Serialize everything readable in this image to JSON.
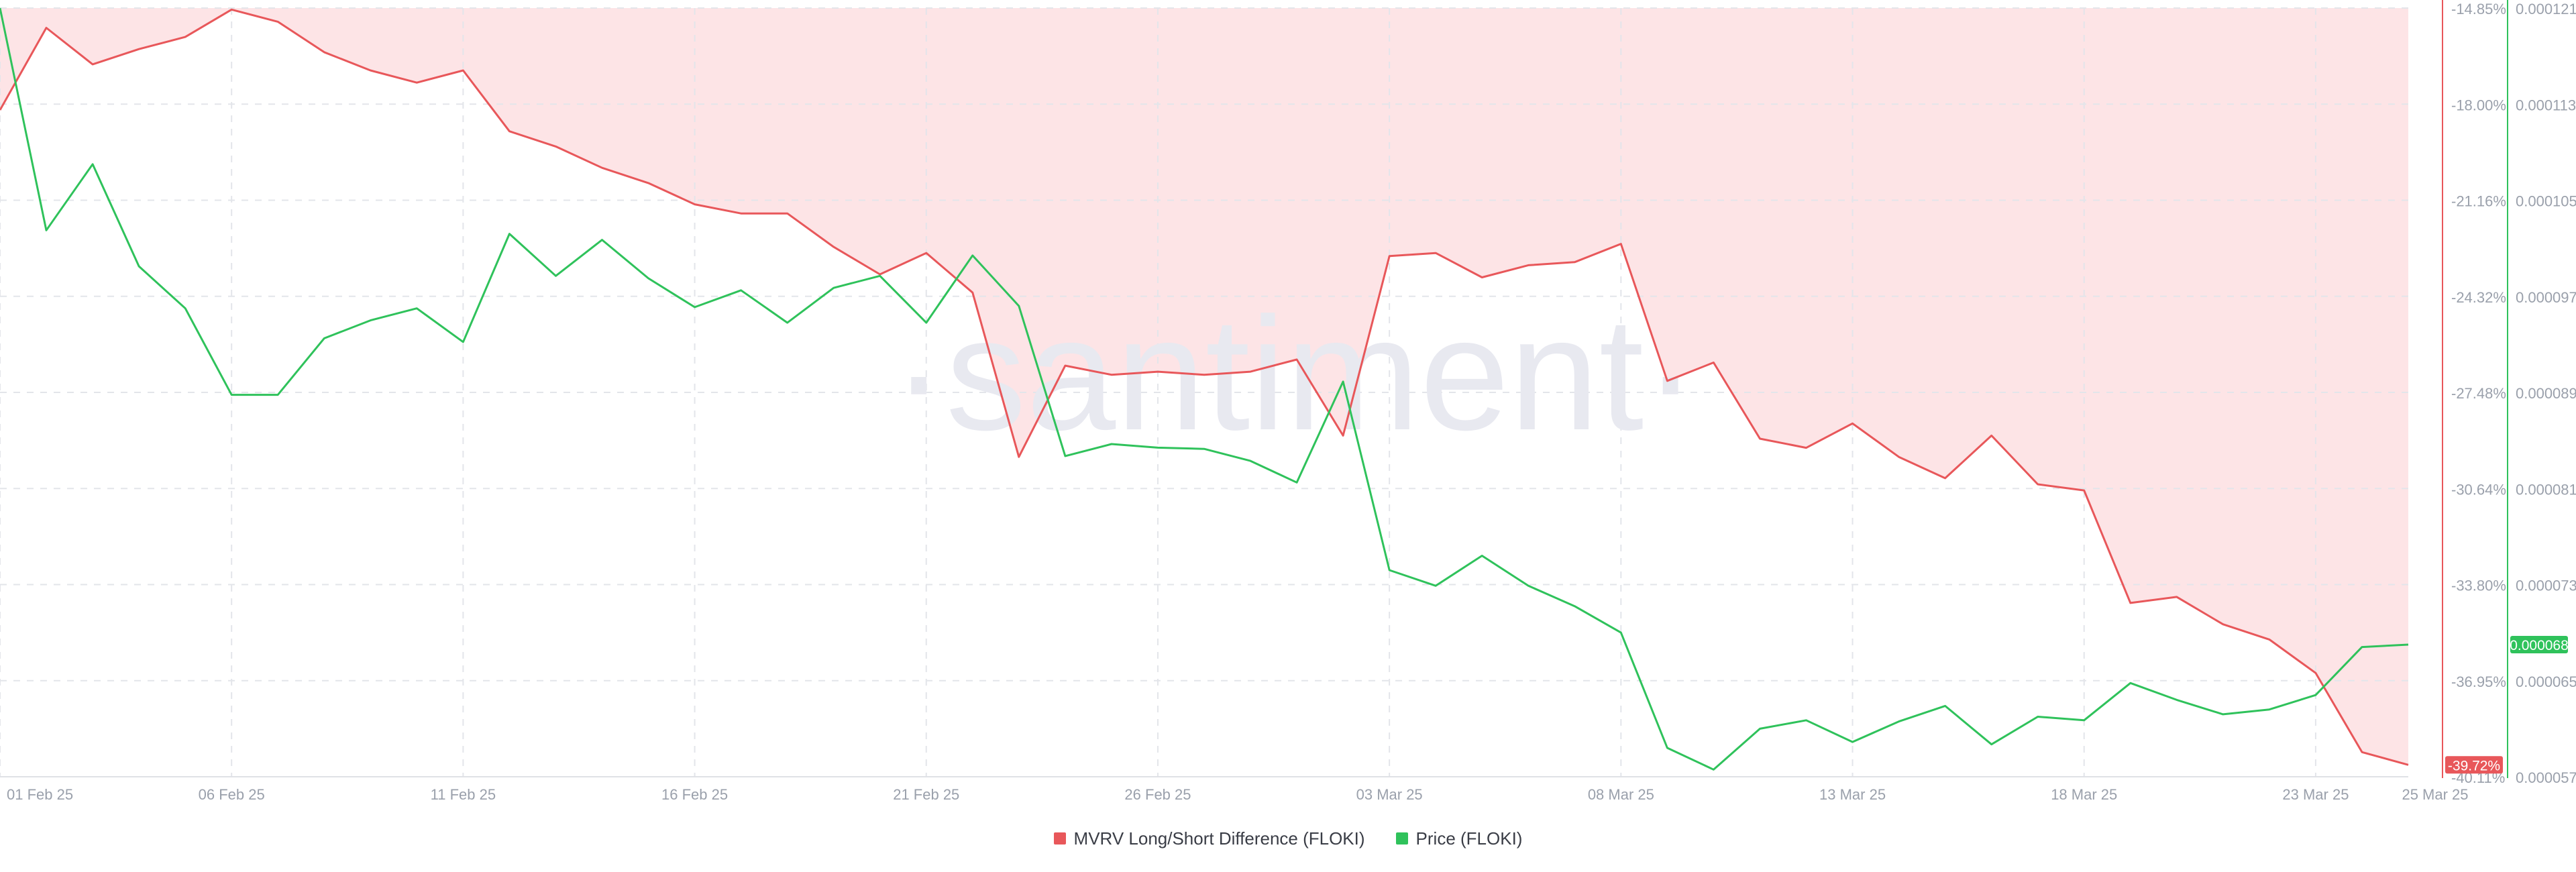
{
  "watermark": "·santiment·",
  "colors": {
    "mvrv": "#e8575a",
    "price": "#2fc25b",
    "negative_fill": "#fde4e6",
    "grid": "#e3e5ea",
    "axis_text": "#9aa0ab",
    "watermark": "#e8e9f0"
  },
  "chart_data": {
    "type": "line",
    "x": [
      "01 Feb 25",
      "02 Feb 25",
      "03 Feb 25",
      "04 Feb 25",
      "05 Feb 25",
      "06 Feb 25",
      "07 Feb 25",
      "08 Feb 25",
      "09 Feb 25",
      "10 Feb 25",
      "11 Feb 25",
      "12 Feb 25",
      "13 Feb 25",
      "14 Feb 25",
      "15 Feb 25",
      "16 Feb 25",
      "17 Feb 25",
      "18 Feb 25",
      "19 Feb 25",
      "20 Feb 25",
      "21 Feb 25",
      "22 Feb 25",
      "23 Feb 25",
      "24 Feb 25",
      "25 Feb 25",
      "26 Feb 25",
      "27 Feb 25",
      "28 Feb 25",
      "01 Mar 25",
      "02 Mar 25",
      "03 Mar 25",
      "04 Mar 25",
      "05 Mar 25",
      "06 Mar 25",
      "07 Mar 25",
      "08 Mar 25",
      "09 Mar 25",
      "10 Mar 25",
      "11 Mar 25",
      "12 Mar 25",
      "13 Mar 25",
      "14 Mar 25",
      "15 Mar 25",
      "16 Mar 25",
      "17 Mar 25",
      "18 Mar 25",
      "19 Mar 25",
      "20 Mar 25",
      "21 Mar 25",
      "22 Mar 25",
      "23 Mar 25",
      "24 Mar 25",
      "25 Mar 25"
    ],
    "x_ticks": [
      "01 Feb 25",
      "06 Feb 25",
      "11 Feb 25",
      "16 Feb 25",
      "21 Feb 25",
      "26 Feb 25",
      "03 Mar 25",
      "08 Mar 25",
      "13 Mar 25",
      "18 Mar 25",
      "23 Mar 25",
      "25 Mar 25"
    ],
    "series": [
      {
        "name": "MVRV Long/Short Difference (FLOKI)",
        "axis": "left",
        "unit": "%",
        "values": [
          -18.2,
          -15.5,
          -16.7,
          -16.2,
          -15.8,
          -14.9,
          -15.3,
          -16.3,
          -16.9,
          -17.3,
          -16.9,
          -18.9,
          -19.4,
          -20.1,
          -20.6,
          -21.3,
          -21.6,
          -21.6,
          -22.7,
          -23.6,
          -22.9,
          -24.2,
          -29.6,
          -26.6,
          -26.9,
          -26.8,
          -26.9,
          -26.8,
          -26.4,
          -28.9,
          -23.0,
          -22.9,
          -23.7,
          -23.3,
          -23.2,
          -22.6,
          -27.1,
          -26.5,
          -29.0,
          -29.3,
          -28.5,
          -29.6,
          -30.3,
          -28.9,
          -30.5,
          -30.7,
          -34.4,
          -34.2,
          -35.1,
          -35.6,
          -36.7,
          -39.3,
          -39.72
        ]
      },
      {
        "name": "Price (FLOKI)",
        "axis": "right",
        "unit": "",
        "values": [
          0.000121,
          0.0001025,
          0.000108,
          9.95e-05,
          9.6e-05,
          8.88e-05,
          8.88e-05,
          9.35e-05,
          9.5e-05,
          9.6e-05,
          9.32e-05,
          0.0001022,
          9.87e-05,
          0.0001017,
          9.85e-05,
          9.61e-05,
          9.75e-05,
          9.48e-05,
          9.77e-05,
          9.87e-05,
          9.48e-05,
          0.0001004,
          9.62e-05,
          8.37e-05,
          8.47e-05,
          8.44e-05,
          8.43e-05,
          8.33e-05,
          8.15e-05,
          8.99e-05,
          7.42e-05,
          7.29e-05,
          7.54e-05,
          7.29e-05,
          7.12e-05,
          6.9e-05,
          5.94e-05,
          5.76e-05,
          6.1e-05,
          6.17e-05,
          5.99e-05,
          6.16e-05,
          6.29e-05,
          5.97e-05,
          6.2e-05,
          6.17e-05,
          6.48e-05,
          6.34e-05,
          6.22e-05,
          6.26e-05,
          6.38e-05,
          6.78e-05,
          6.8e-05
        ]
      }
    ],
    "left_axis": {
      "ylim": [
        -40.11,
        -14.85
      ],
      "tick_labels": [
        "-14.85%",
        "-18.00%",
        "-21.16%",
        "-24.32%",
        "-27.48%",
        "-30.64%",
        "-33.80%",
        "-36.95%",
        "-40.11%"
      ]
    },
    "right_axis": {
      "ylim": [
        5.7e-05,
        0.000121
      ],
      "tick_labels": [
        "0.000121",
        "0.000113",
        "0.000105",
        "0.000097",
        "0.000089",
        "0.000081",
        "0.000073",
        "0.000065",
        "0.000057"
      ]
    },
    "last_value_labels": {
      "mvrv": "-39.72%",
      "price": "0.000068"
    },
    "grid": true,
    "legend_position": "bottom-center"
  },
  "legend": {
    "items": [
      {
        "label": "MVRV Long/Short Difference (FLOKI)",
        "color": "#e8575a"
      },
      {
        "label": "Price (FLOKI)",
        "color": "#2fc25b"
      }
    ]
  }
}
